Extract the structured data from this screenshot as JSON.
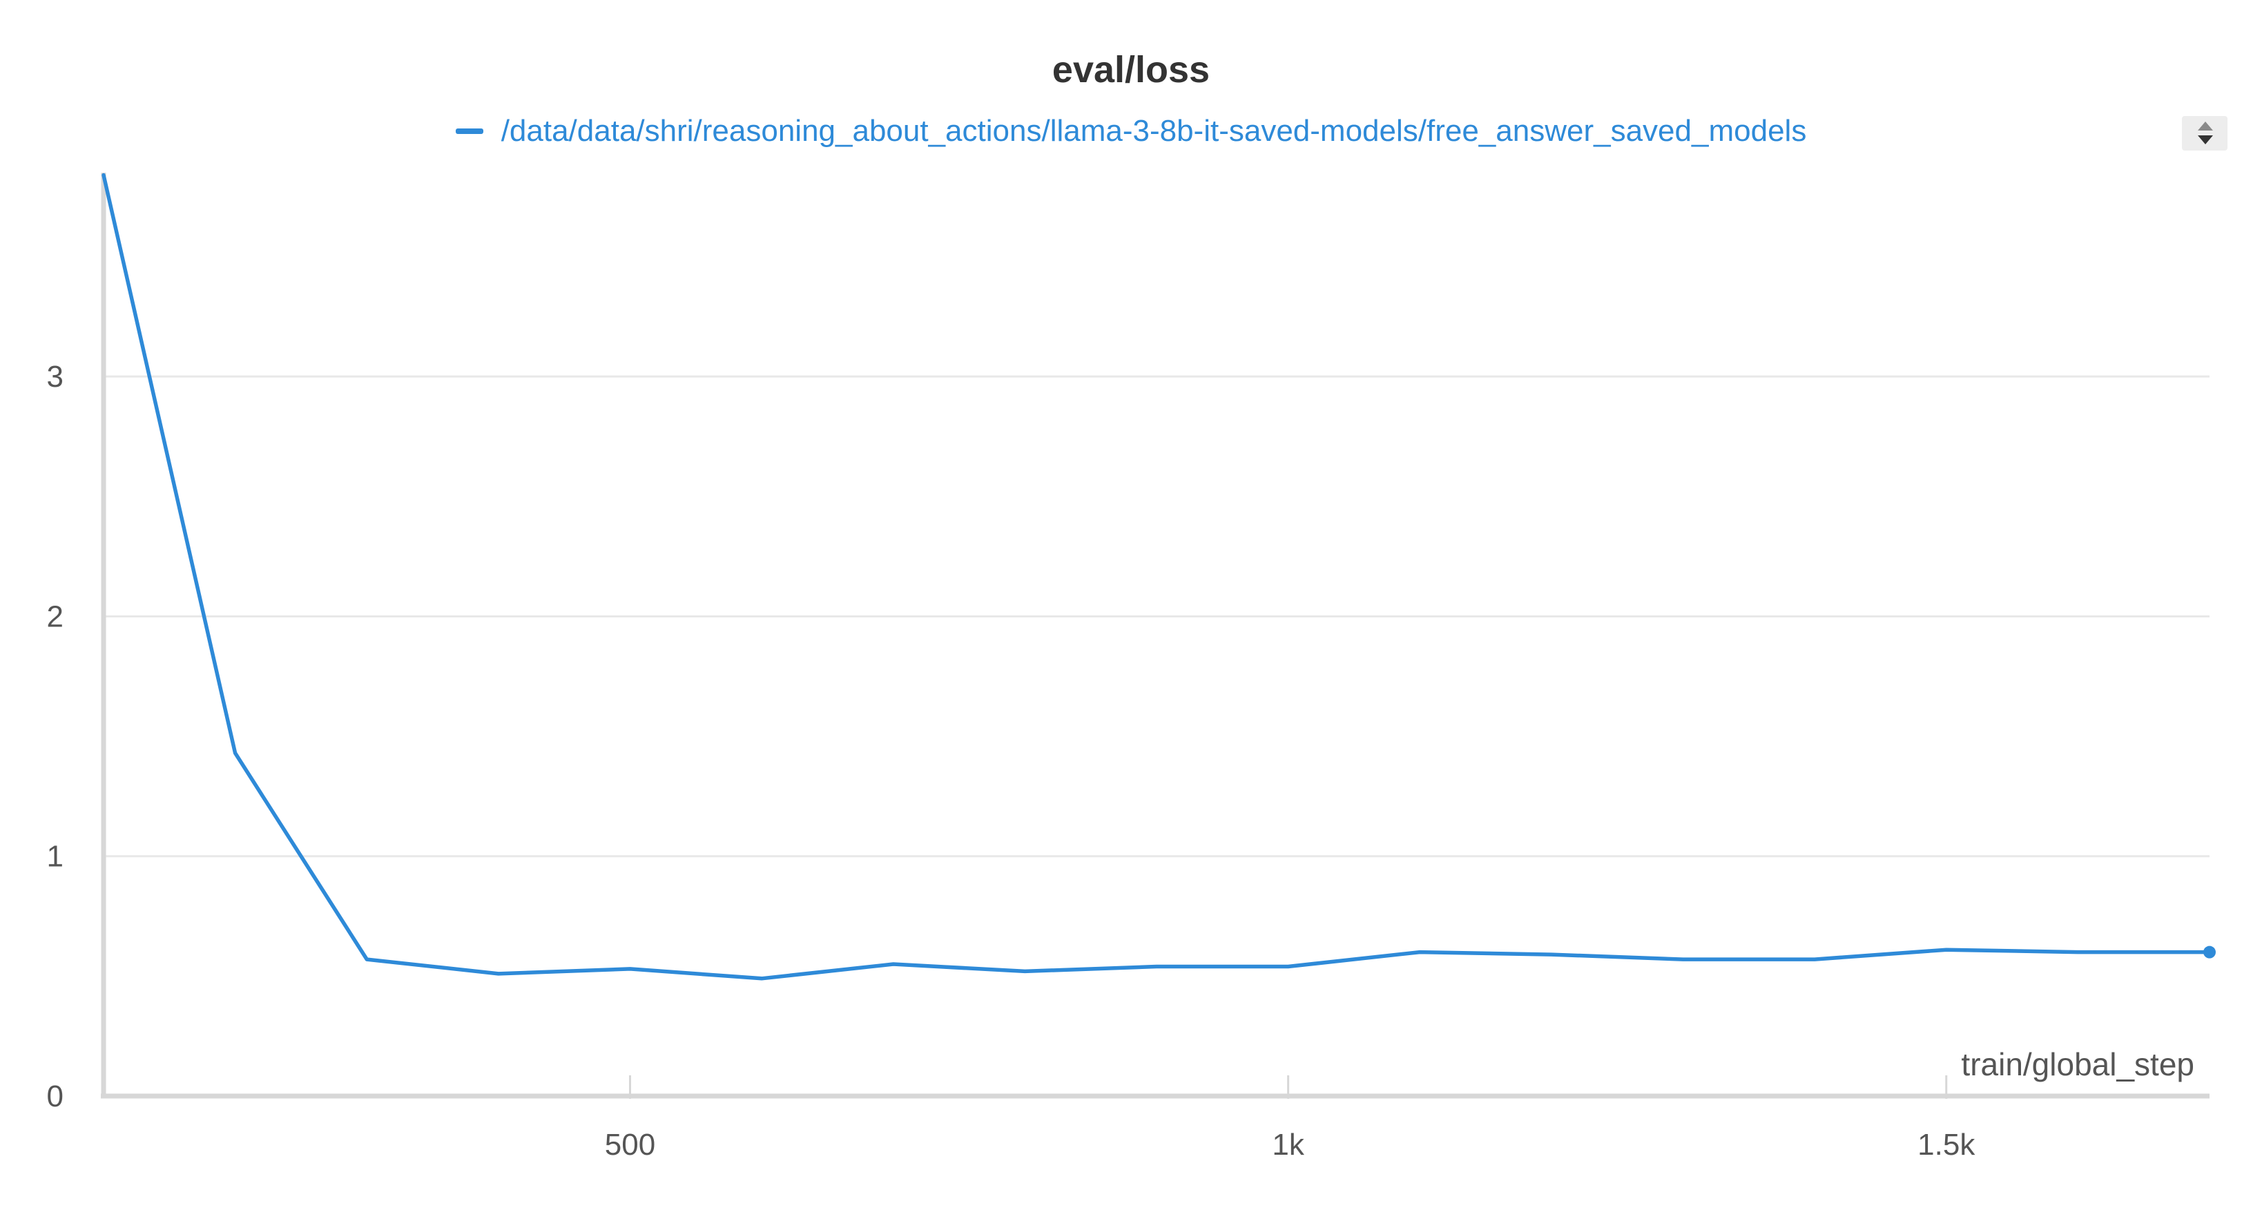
{
  "chart_data": {
    "type": "line",
    "title": "eval/loss",
    "xlabel": "train/global_step",
    "ylabel": "",
    "xlim": [
      100,
      1700
    ],
    "ylim": [
      0,
      3.85
    ],
    "x_ticks": [
      500,
      1000,
      1500
    ],
    "x_tick_labels": [
      "500",
      "1k",
      "1.5k"
    ],
    "y_ticks": [
      0,
      1,
      2,
      3
    ],
    "y_tick_labels": [
      "0",
      "1",
      "2",
      "3"
    ],
    "grid": true,
    "legend_position": "top-center",
    "series": [
      {
        "name": "/data/data/shri/reasoning_about_actions/llama-3-8b-it-saved-models/free_answer_saved_models",
        "color": "#2e8ad8",
        "x": [
          100,
          200,
          300,
          400,
          500,
          600,
          700,
          800,
          900,
          1000,
          1100,
          1200,
          1300,
          1400,
          1500,
          1600,
          1700
        ],
        "y": [
          3.84,
          1.43,
          0.57,
          0.51,
          0.53,
          0.49,
          0.55,
          0.52,
          0.54,
          0.54,
          0.6,
          0.59,
          0.57,
          0.57,
          0.61,
          0.6,
          0.6
        ]
      }
    ]
  }
}
